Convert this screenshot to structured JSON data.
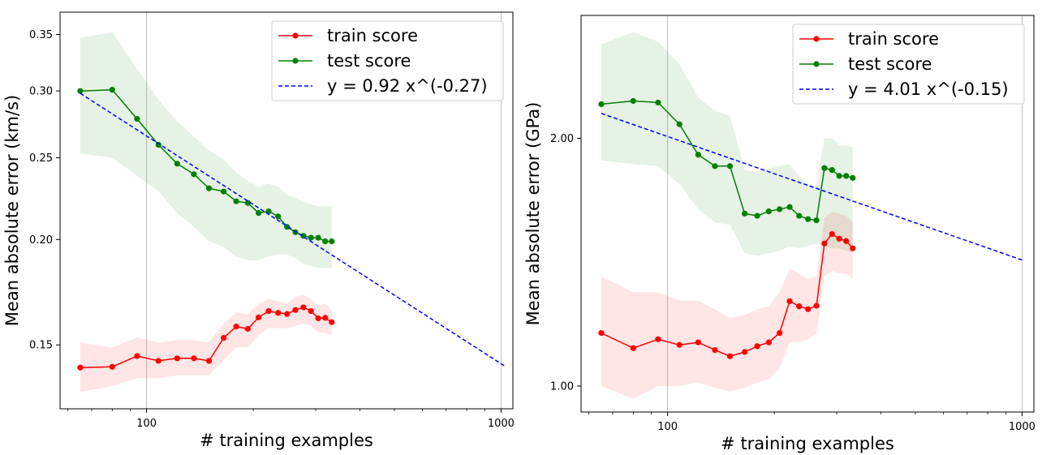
{
  "chart_data": [
    {
      "type": "line",
      "xscale": "log",
      "yscale": "log",
      "xlabel": "# training examples",
      "ylabel": "Mean absolute error (km/s)",
      "xlim": [
        57,
        1080
      ],
      "ylim": [
        0.126,
        0.372
      ],
      "xticks": [
        {
          "v": 100,
          "label": "100"
        },
        {
          "v": 1000,
          "label": "1000"
        }
      ],
      "yticks": [
        {
          "v": 0.15,
          "label": "0.15"
        },
        {
          "v": 0.2,
          "label": "0.20"
        },
        {
          "v": 0.25,
          "label": "0.25"
        },
        {
          "v": 0.3,
          "label": "0.30"
        },
        {
          "v": 0.35,
          "label": "0.35"
        }
      ],
      "grid": "x",
      "legend_position": "top-right",
      "series": [
        {
          "name": "train score",
          "color": "#ff0000",
          "marker": "circle",
          "x": [
            65,
            80,
            94,
            108,
            122,
            136,
            150,
            165,
            179,
            193,
            207,
            221,
            235,
            249,
            263,
            277,
            291,
            305,
            319,
            333
          ],
          "y": [
            0.141,
            0.1413,
            0.1455,
            0.1436,
            0.1446,
            0.1446,
            0.1436,
            0.1529,
            0.1577,
            0.1567,
            0.1617,
            0.1645,
            0.1637,
            0.1632,
            0.165,
            0.1662,
            0.1645,
            0.1613,
            0.1615,
            0.1596
          ],
          "lower": [
            0.132,
            0.134,
            0.137,
            0.137,
            0.138,
            0.138,
            0.138,
            0.144,
            0.149,
            0.149,
            0.154,
            0.157,
            0.157,
            0.157,
            0.158,
            0.159,
            0.158,
            0.155,
            0.155,
            0.154
          ],
          "upper": [
            0.151,
            0.149,
            0.153,
            0.151,
            0.152,
            0.152,
            0.151,
            0.159,
            0.164,
            0.163,
            0.168,
            0.17,
            0.169,
            0.168,
            0.171,
            0.172,
            0.17,
            0.167,
            0.168,
            0.165
          ]
        },
        {
          "name": "test score",
          "color": "#008000",
          "marker": "circle",
          "x": [
            65,
            80,
            94,
            108,
            122,
            136,
            150,
            165,
            179,
            193,
            207,
            221,
            235,
            249,
            263,
            277,
            291,
            305,
            319,
            333
          ],
          "y": [
            0.3,
            0.301,
            0.278,
            0.259,
            0.246,
            0.239,
            0.23,
            0.228,
            0.222,
            0.221,
            0.215,
            0.216,
            0.213,
            0.207,
            0.204,
            0.202,
            0.201,
            0.201,
            0.199,
            0.199
          ],
          "lower": [
            0.253,
            0.25,
            0.238,
            0.228,
            0.215,
            0.207,
            0.199,
            0.196,
            0.191,
            0.189,
            0.189,
            0.191,
            0.192,
            0.192,
            0.19,
            0.187,
            0.186,
            0.185,
            0.185,
            0.185
          ],
          "upper": [
            0.347,
            0.352,
            0.319,
            0.293,
            0.276,
            0.265,
            0.255,
            0.249,
            0.24,
            0.235,
            0.231,
            0.233,
            0.231,
            0.226,
            0.224,
            0.222,
            0.22,
            0.219,
            0.219,
            0.219
          ]
        },
        {
          "name": "y = 0.92 x^(-0.27)",
          "color": "#0000ff",
          "dashed": true,
          "fit": {
            "a": 0.92,
            "b": -0.27
          },
          "x": [
            65,
            1030
          ]
        }
      ]
    },
    {
      "type": "line",
      "xscale": "log",
      "yscale": "log",
      "xlabel": "# training examples",
      "ylabel": "Mean absolute error (GPa)",
      "xlim": [
        57,
        1080
      ],
      "ylim": [
        0.93,
        2.82
      ],
      "xticks": [
        {
          "v": 100,
          "label": "100"
        },
        {
          "v": 1000,
          "label": "1000"
        }
      ],
      "yticks": [
        {
          "v": 1.0,
          "label": "1.00"
        },
        {
          "v": 2.0,
          "label": "2.00"
        }
      ],
      "grid": "x",
      "legend_position": "top-right",
      "series": [
        {
          "name": "train score",
          "color": "#ff0000",
          "marker": "circle",
          "x": [
            65,
            80,
            94,
            108,
            122,
            136,
            150,
            165,
            179,
            193,
            207,
            221,
            235,
            249,
            263,
            277,
            291,
            305,
            319,
            333
          ],
          "y": [
            1.16,
            1.112,
            1.14,
            1.122,
            1.13,
            1.106,
            1.087,
            1.1,
            1.118,
            1.13,
            1.16,
            1.268,
            1.25,
            1.24,
            1.252,
            1.49,
            1.53,
            1.51,
            1.5,
            1.47
          ],
          "lower": [
            1.0,
            0.965,
            1.0,
            1.0,
            1.01,
            0.995,
            0.985,
            0.995,
            1.01,
            1.02,
            1.05,
            1.13,
            1.13,
            1.14,
            1.16,
            1.36,
            1.38,
            1.37,
            1.37,
            1.35
          ],
          "upper": [
            1.36,
            1.3,
            1.3,
            1.27,
            1.27,
            1.24,
            1.21,
            1.22,
            1.24,
            1.25,
            1.3,
            1.39,
            1.37,
            1.35,
            1.36,
            1.6,
            1.63,
            1.62,
            1.61,
            1.58
          ]
        },
        {
          "name": "test score",
          "color": "#008000",
          "marker": "circle",
          "x": [
            65,
            80,
            94,
            108,
            122,
            136,
            150,
            165,
            179,
            193,
            207,
            221,
            235,
            249,
            263,
            277,
            291,
            305,
            319,
            333
          ],
          "y": [
            2.2,
            2.22,
            2.21,
            2.08,
            1.91,
            1.85,
            1.85,
            1.62,
            1.61,
            1.63,
            1.64,
            1.65,
            1.61,
            1.595,
            1.59,
            1.84,
            1.83,
            1.8,
            1.8,
            1.79
          ],
          "lower": [
            1.88,
            1.86,
            1.85,
            1.76,
            1.64,
            1.58,
            1.57,
            1.45,
            1.44,
            1.45,
            1.46,
            1.48,
            1.47,
            1.48,
            1.49,
            1.48,
            1.47,
            1.47,
            1.46,
            1.45
          ],
          "upper": [
            2.6,
            2.69,
            2.62,
            2.46,
            2.24,
            2.16,
            2.13,
            1.83,
            1.82,
            1.84,
            1.85,
            1.86,
            1.8,
            1.76,
            1.75,
            2.0,
            2.0,
            1.96,
            1.96,
            1.95
          ]
        },
        {
          "name": "y = 4.01 x^(-0.15)",
          "color": "#0000ff",
          "dashed": true,
          "fit": {
            "a": 4.01,
            "b": -0.15
          },
          "x": [
            65,
            1015
          ]
        }
      ]
    }
  ],
  "colors": {
    "train": "#ff0000",
    "test": "#008000",
    "fit": "#0000ff",
    "axis": "#000000",
    "grid": "#b0b0b0"
  }
}
